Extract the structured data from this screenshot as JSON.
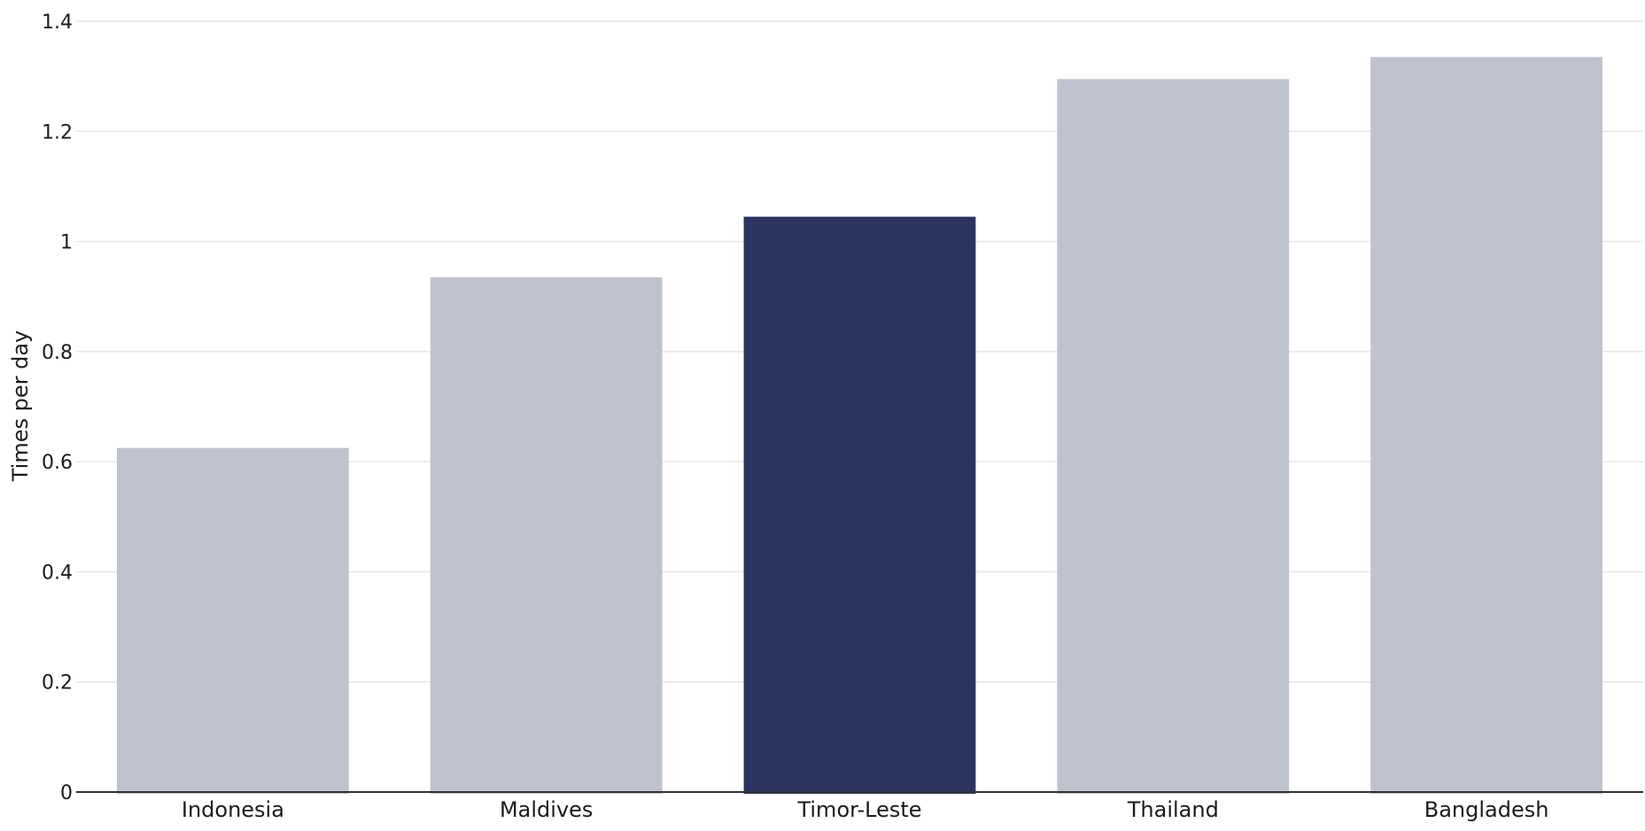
{
  "chart_data": {
    "type": "bar",
    "categories": [
      "Indonesia",
      "Maldives",
      "Timor-Leste",
      "Thailand",
      "Bangladesh"
    ],
    "values": [
      0.625,
      0.935,
      1.045,
      1.295,
      1.335
    ],
    "highlight": "Timor-Leste",
    "xlabel": "",
    "ylabel": "Times per day",
    "ylim": [
      0,
      1.4
    ],
    "yticks": [
      0,
      0.2,
      0.4,
      0.6,
      0.8,
      1,
      1.2,
      1.4
    ],
    "ytick_labels": [
      "0",
      "0.2",
      "0.4",
      "0.6",
      "0.8",
      "1",
      "1.2",
      "1.4"
    ],
    "grid": true,
    "colors": {
      "bar": "#bfc3cf",
      "highlight": "#2a3560",
      "grid": "#e6e6e6",
      "axis": "#333333",
      "text": "#1b1b1b"
    }
  }
}
